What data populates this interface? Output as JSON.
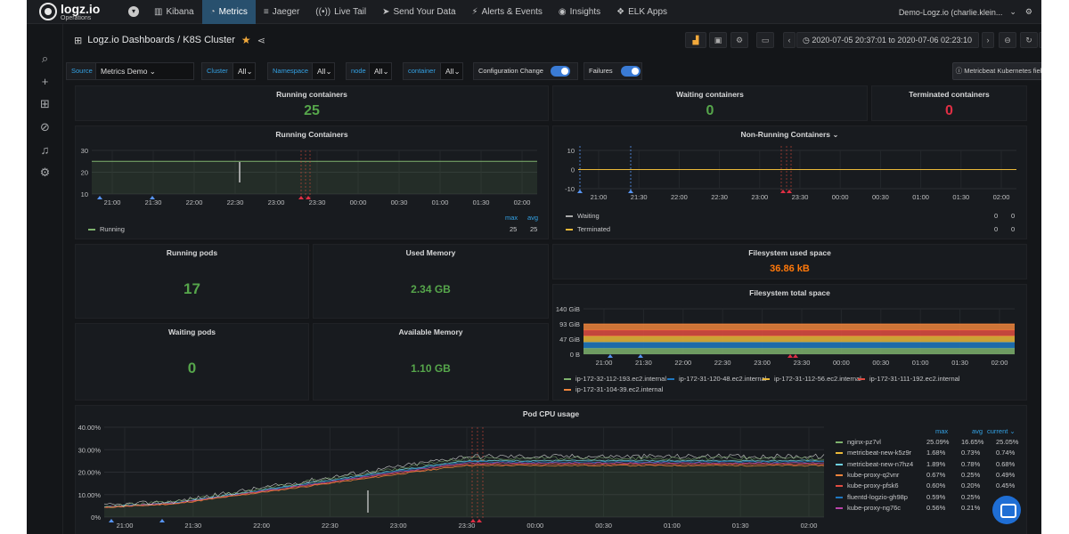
{
  "app": {
    "logo_line1": "logz.io",
    "logo_line2": "Operations",
    "user": "Demo-Logz.io (charlie.klein..."
  },
  "nav": [
    {
      "label": "Kibana",
      "icon": "bar-chart-icon"
    },
    {
      "label": "Metrics",
      "icon": "metrics-icon",
      "active": true
    },
    {
      "label": "Jaeger",
      "icon": "jaeger-icon"
    },
    {
      "label": "Live Tail",
      "icon": "live-tail-icon"
    },
    {
      "label": "Send Your Data",
      "icon": "send-icon"
    },
    {
      "label": "Alerts & Events",
      "icon": "alerts-icon"
    },
    {
      "label": "Insights",
      "icon": "eye-icon"
    },
    {
      "label": "ELK Apps",
      "icon": "elk-apps-icon"
    }
  ],
  "dashboard": {
    "title": "Logz.io Dashboards / K8S Cluster",
    "time_range": "2020-07-05 20:37:01 to 2020-07-06 02:23:10"
  },
  "variables": [
    {
      "label": "Source",
      "value": "Metrics Demo"
    },
    {
      "label": "Cluster",
      "value": "All"
    },
    {
      "label": "Namespace",
      "value": "All"
    },
    {
      "label": "node",
      "value": "All"
    },
    {
      "label": "container",
      "value": "All"
    }
  ],
  "switches": [
    {
      "label": "Configuration Change",
      "on": true
    },
    {
      "label": "Failures",
      "on": true
    }
  ],
  "metricbeat_button": "Metricbeat Kubernetes fields",
  "stats": {
    "running_containers": {
      "title": "Running containers",
      "value": "25"
    },
    "waiting_containers": {
      "title": "Waiting containers",
      "value": "0"
    },
    "terminated_containers": {
      "title": "Terminated containers",
      "value": "0"
    },
    "running_pods": {
      "title": "Running pods",
      "value": "17"
    },
    "used_memory": {
      "title": "Used Memory",
      "value": "2.34 GB"
    },
    "waiting_pods": {
      "title": "Waiting pods",
      "value": "0"
    },
    "available_memory": {
      "title": "Available Memory",
      "value": "1.10 GB"
    },
    "fs_used": {
      "title": "Filesystem used space",
      "value": "36.86 kB"
    }
  },
  "time_ticks": [
    "21:00",
    "21:30",
    "22:00",
    "22:30",
    "23:00",
    "23:30",
    "00:00",
    "00:30",
    "01:00",
    "01:30",
    "02:00"
  ],
  "chart_data": [
    {
      "type": "line",
      "title": "Running Containers",
      "x": [
        "21:00",
        "21:30",
        "22:00",
        "22:30",
        "23:00",
        "23:30",
        "00:00",
        "00:30",
        "01:00",
        "01:30",
        "02:00"
      ],
      "ylim": [
        10,
        30
      ],
      "yticks": [
        "30",
        "20",
        "10"
      ],
      "legend_headers": [
        "max",
        "avg"
      ],
      "series": [
        {
          "name": "Running",
          "values": [
            25,
            25,
            25,
            25,
            25,
            25,
            25,
            25,
            25,
            25,
            25
          ],
          "max": "25",
          "avg": "25",
          "color": "#7eb26d"
        }
      ]
    },
    {
      "type": "line",
      "title": "Non-Running Containers",
      "x": [
        "21:00",
        "21:30",
        "22:00",
        "22:30",
        "23:00",
        "23:30",
        "00:00",
        "00:30",
        "01:00",
        "01:30",
        "02:00"
      ],
      "ylim": [
        -10,
        10
      ],
      "yticks": [
        "10",
        "0",
        "-10"
      ],
      "series": [
        {
          "name": "Waiting",
          "values": [
            0,
            0,
            0,
            0,
            0,
            0,
            0,
            0,
            0,
            0,
            0
          ],
          "max": "0",
          "avg": "0",
          "color": "#aaaaaa"
        },
        {
          "name": "Terminated",
          "values": [
            0,
            0,
            0,
            0,
            0,
            0,
            0,
            0,
            0,
            0,
            0
          ],
          "max": "0",
          "avg": "0",
          "color": "#eab839"
        }
      ]
    },
    {
      "type": "area",
      "title": "Filesystem total space",
      "x": [
        "21:00",
        "21:30",
        "22:00",
        "22:30",
        "23:00",
        "23:30",
        "00:00",
        "00:30",
        "01:00",
        "01:30",
        "02:00"
      ],
      "ylim": [
        0,
        140
      ],
      "yticks": [
        "140 GiB",
        "93 GiB",
        "47 GiB",
        "0 B"
      ],
      "stacked": true,
      "series": [
        {
          "name": "ip-172-32-112-193.ec2.internal",
          "value": 18.6,
          "color": "#7eb26d"
        },
        {
          "name": "ip-172-31-120-48.ec2.internal",
          "value": 18.6,
          "color": "#1f78c1"
        },
        {
          "name": "ip-172-31-112-56.ec2.internal",
          "value": 18.6,
          "color": "#eab839"
        },
        {
          "name": "ip-172-31-111-192.ec2.internal",
          "value": 18.6,
          "color": "#e24d42"
        },
        {
          "name": "ip-172-31-104-39.ec2.internal",
          "value": 18.6,
          "color": "#ef843c"
        }
      ]
    },
    {
      "type": "line",
      "title": "Pod CPU usage",
      "x": [
        "21:00",
        "21:30",
        "22:00",
        "22:30",
        "23:00",
        "23:30",
        "00:00",
        "00:30",
        "01:00",
        "01:30",
        "02:00"
      ],
      "ylim": [
        0,
        40
      ],
      "yticks": [
        "40.00%",
        "30.00%",
        "20.00%",
        "10.00%",
        "0%"
      ],
      "legend_headers": [
        "max",
        "avg",
        "current"
      ],
      "total_values": [
        5,
        7,
        12,
        17,
        22,
        27,
        27,
        27,
        27,
        27,
        27
      ],
      "series": [
        {
          "name": "nginx-pz7vl",
          "max": "25.09%",
          "avg": "16.65%",
          "current": "25.05%",
          "color": "#7eb26d"
        },
        {
          "name": "metricbeat-new-k5z9r",
          "max": "1.68%",
          "avg": "0.73%",
          "current": "0.74%",
          "color": "#eab839"
        },
        {
          "name": "metricbeat-new-n7hz4",
          "max": "1.89%",
          "avg": "0.78%",
          "current": "0.68%",
          "color": "#6ed0e0"
        },
        {
          "name": "kube-proxy-q2vnr",
          "max": "0.67%",
          "avg": "0.25%",
          "current": "0.49%",
          "color": "#ef843c"
        },
        {
          "name": "kube-proxy-pfsk6",
          "max": "0.60%",
          "avg": "0.20%",
          "current": "0.45%",
          "color": "#e24d42"
        },
        {
          "name": "fluentd-logzio-gh98p",
          "max": "0.59%",
          "avg": "0.25%",
          "current": "",
          "color": "#1f78c1"
        },
        {
          "name": "kube-proxy-ng76c",
          "max": "0.56%",
          "avg": "0.21%",
          "current": "",
          "color": "#ba43a9"
        }
      ]
    }
  ]
}
